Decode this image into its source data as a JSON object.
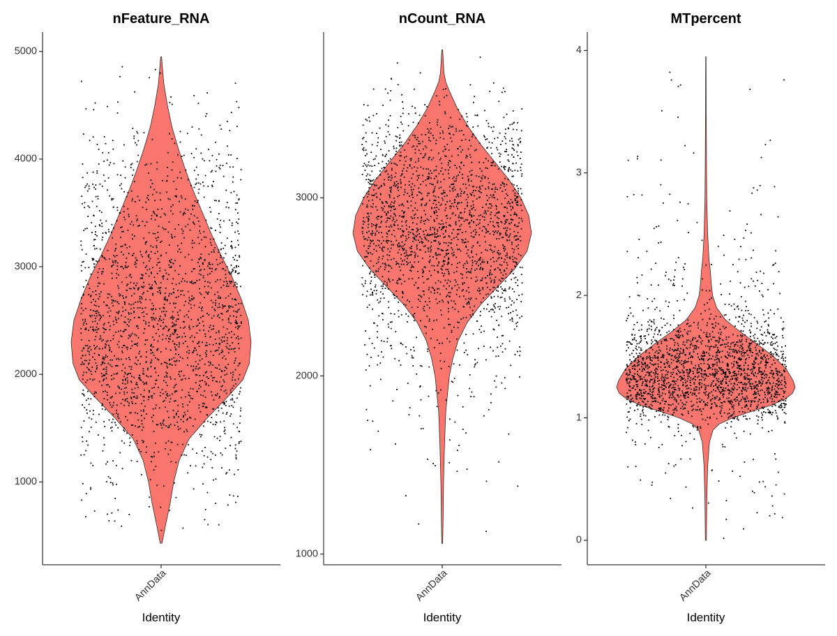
{
  "chart_data": [
    {
      "type": "violin",
      "title": "nFeature_RNA",
      "xlabel": "Identity",
      "ylabel": "",
      "categories": [
        "AnnData"
      ],
      "ylim": [
        230,
        5180
      ],
      "yticks": [
        1000,
        2000,
        3000,
        4000,
        5000
      ],
      "fill_color": "#F8766D",
      "jitter_points": true,
      "summary": {
        "min": 430,
        "max": 4950,
        "mode": 2300
      },
      "density": [
        [
          430,
          0.01
        ],
        [
          600,
          0.05
        ],
        [
          800,
          0.1
        ],
        [
          1000,
          0.14
        ],
        [
          1200,
          0.2
        ],
        [
          1400,
          0.31
        ],
        [
          1600,
          0.52
        ],
        [
          1800,
          0.75
        ],
        [
          1950,
          0.91
        ],
        [
          2100,
          0.98
        ],
        [
          2300,
          1.0
        ],
        [
          2500,
          0.97
        ],
        [
          2700,
          0.89
        ],
        [
          2900,
          0.79
        ],
        [
          3100,
          0.67
        ],
        [
          3300,
          0.56
        ],
        [
          3500,
          0.46
        ],
        [
          3700,
          0.36
        ],
        [
          3900,
          0.27
        ],
        [
          4100,
          0.19
        ],
        [
          4300,
          0.12
        ],
        [
          4500,
          0.07
        ],
        [
          4700,
          0.03
        ],
        [
          4850,
          0.015
        ],
        [
          4950,
          0.005
        ]
      ]
    },
    {
      "type": "violin",
      "title": "nCount_RNA",
      "xlabel": "Identity",
      "ylabel": "",
      "categories": [
        "AnnData"
      ],
      "ylim": [
        940,
        3930
      ],
      "yticks": [
        1000,
        2000,
        3000
      ],
      "fill_color": "#F8766D",
      "jitter_points": true,
      "summary": {
        "min": 1060,
        "max": 3830,
        "mode": 2800
      },
      "density": [
        [
          1060,
          0.005
        ],
        [
          1200,
          0.01
        ],
        [
          1400,
          0.015
        ],
        [
          1600,
          0.025
        ],
        [
          1800,
          0.04
        ],
        [
          1900,
          0.06
        ],
        [
          2000,
          0.08
        ],
        [
          2100,
          0.12
        ],
        [
          2200,
          0.18
        ],
        [
          2300,
          0.28
        ],
        [
          2400,
          0.43
        ],
        [
          2500,
          0.62
        ],
        [
          2600,
          0.81
        ],
        [
          2700,
          0.95
        ],
        [
          2800,
          1.0
        ],
        [
          2900,
          0.97
        ],
        [
          3000,
          0.88
        ],
        [
          3100,
          0.75
        ],
        [
          3200,
          0.59
        ],
        [
          3300,
          0.43
        ],
        [
          3400,
          0.29
        ],
        [
          3500,
          0.17
        ],
        [
          3600,
          0.08
        ],
        [
          3650,
          0.04
        ],
        [
          3700,
          0.02
        ],
        [
          3830,
          0.005
        ]
      ]
    },
    {
      "type": "violin",
      "title": "MTpercent",
      "xlabel": "Identity",
      "ylabel": "",
      "categories": [
        "AnnData"
      ],
      "ylim": [
        -0.2,
        4.15
      ],
      "yticks": [
        0,
        1,
        2,
        3,
        4
      ],
      "fill_color": "#F8766D",
      "jitter_points": true,
      "summary": {
        "min": 0.0,
        "max": 3.95,
        "mode": 1.25
      },
      "density": [
        [
          0.0,
          0.006
        ],
        [
          0.3,
          0.01
        ],
        [
          0.6,
          0.02
        ],
        [
          0.8,
          0.04
        ],
        [
          0.9,
          0.08
        ],
        [
          0.95,
          0.15
        ],
        [
          1.0,
          0.3
        ],
        [
          1.05,
          0.5
        ],
        [
          1.1,
          0.72
        ],
        [
          1.15,
          0.88
        ],
        [
          1.2,
          0.97
        ],
        [
          1.25,
          1.0
        ],
        [
          1.3,
          0.98
        ],
        [
          1.4,
          0.9
        ],
        [
          1.5,
          0.76
        ],
        [
          1.6,
          0.58
        ],
        [
          1.7,
          0.39
        ],
        [
          1.8,
          0.22
        ],
        [
          1.9,
          0.12
        ],
        [
          2.0,
          0.075
        ],
        [
          2.1,
          0.06
        ],
        [
          2.2,
          0.05
        ],
        [
          2.3,
          0.035
        ],
        [
          2.5,
          0.02
        ],
        [
          2.8,
          0.01
        ],
        [
          3.0,
          0.008
        ],
        [
          3.5,
          0.004
        ],
        [
          3.95,
          0.002
        ]
      ]
    }
  ]
}
